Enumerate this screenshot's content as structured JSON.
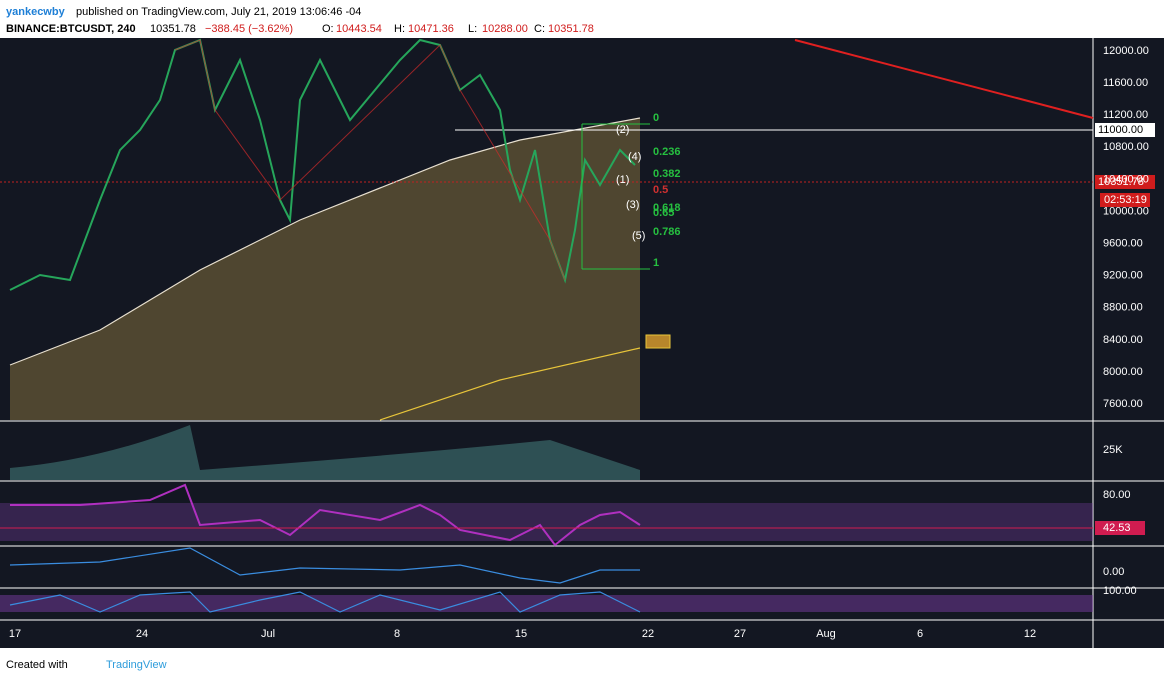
{
  "header": {
    "author": "yankecwby",
    "published": "published on TradingView.com, July 21, 2019 13:06:46 -04",
    "symbol": "BINANCE:BTCUSDT, 240",
    "price": "10351.78",
    "change": "−388.45 (−3.62%)",
    "ohlc": [
      {
        "label": "O:",
        "value": "10443.54"
      },
      {
        "label": "H:",
        "value": "10471.36"
      },
      {
        "label": "L:",
        "value": "10288.00"
      },
      {
        "label": "C:",
        "value": "10351.78"
      }
    ]
  },
  "price_axis": [
    "12000.00",
    "11600.00",
    "11200.00",
    "10800.00",
    "10400.00",
    "10000.00",
    "9600.00",
    "9200.00",
    "8800.00",
    "8400.00",
    "8000.00",
    "7600.00"
  ],
  "tags": {
    "level": "11000.00",
    "last": "10351.78",
    "countdown": "02:53:19"
  },
  "panes": {
    "volume": "25K",
    "rsi_upper": "80.00",
    "rsi_value": "42.53",
    "macd": "0.00",
    "stoch": "100.00"
  },
  "dates": [
    "17",
    "24",
    "Jul",
    "8",
    "15",
    "22",
    "27",
    "Aug",
    "6",
    "12"
  ],
  "fib": [
    "0",
    "0.236",
    "0.382",
    "0.5",
    "0.618",
    "0.65",
    "0.786",
    "1"
  ],
  "waves": [
    "(2)",
    "(4)",
    "(1)",
    "(3)",
    "(5)"
  ],
  "footer": {
    "created": "Created with",
    "brand": "TradingView"
  }
}
